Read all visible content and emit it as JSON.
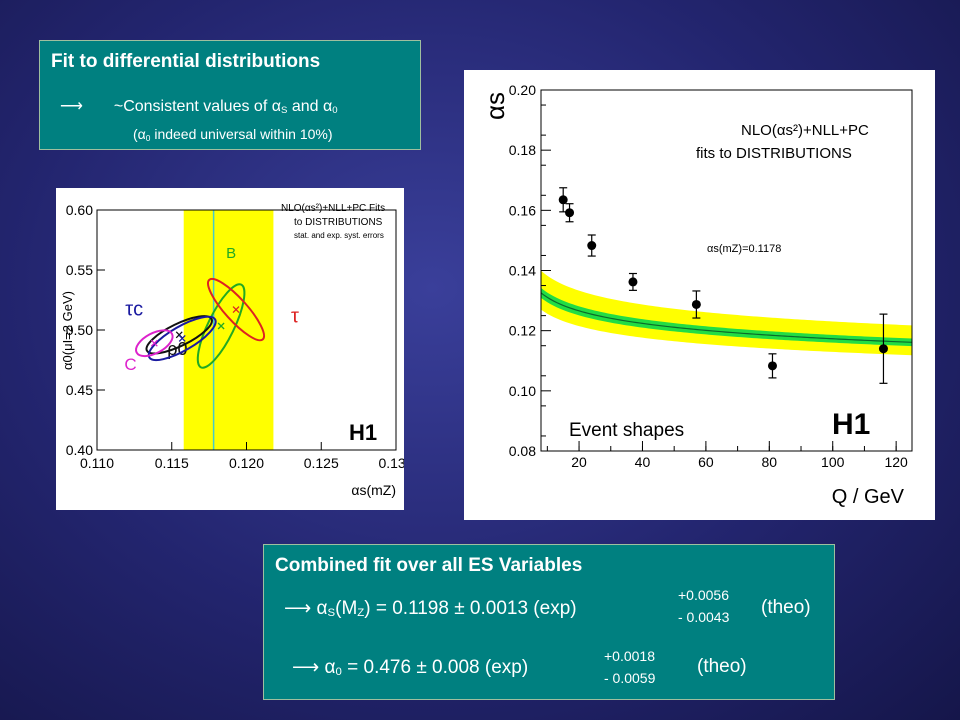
{
  "box1": {
    "title": "Fit to differential distributions",
    "arrow": "⟶",
    "line1_text": "~Consistent values of",
    "alpha": "α",
    "S": "S",
    "and": "and",
    "zero": "0",
    "line2_open": "(",
    "line2_rest": "indeed universal within 10%)"
  },
  "box2": {
    "title": "Combined fit over all ES Variables",
    "arrow": "⟶",
    "alpha": "α",
    "S": "S",
    "M": "(M",
    "Z": "Z",
    "eq1": ") = 0.1198 ± 0.0013 (exp)",
    "up1": "+0.0056",
    "dn1": "- 0.0043",
    "theo": "(theo)",
    "zero": "0",
    "eq2": "= 0.476 ± 0.008 (exp)",
    "up2": "+0.0018",
    "dn2": "- 0.0059"
  },
  "chart_data": [
    {
      "type": "scatter",
      "title": "",
      "xlabel": "αs(mZ)",
      "ylabel": "α0(μI=2 GeV)",
      "xlim": [
        0.11,
        0.13
      ],
      "ylim": [
        0.4,
        0.6
      ],
      "xticks": [
        "0.110",
        "0.115",
        "0.120",
        "0.125",
        "0.130"
      ],
      "yticks": [
        "0.40",
        "0.45",
        "0.50",
        "0.55",
        "0.60"
      ],
      "legend": [
        "NLO(αs²)+NLL+PC Fits",
        "to DISTRIBUTIONS",
        "stat. and exp. syst. errors"
      ],
      "band": [
        0.1158,
        0.1218
      ],
      "central_line": 0.1178,
      "series": [
        {
          "name": "B",
          "x": 0.1179,
          "y": 0.5,
          "color": "#22aa22"
        },
        {
          "name": "τ",
          "x": 0.1193,
          "y": 0.517,
          "color": "#dd2222"
        },
        {
          "name": "ρ0",
          "x": 0.1155,
          "y": 0.496,
          "color": "#111111"
        },
        {
          "name": "τc",
          "x": 0.1157,
          "y": 0.493,
          "color": "#1a1aa0"
        },
        {
          "name": "C",
          "x": 0.1137,
          "y": 0.489,
          "color": "#dd22cc"
        }
      ],
      "watermark": "H1"
    },
    {
      "type": "line",
      "title": "",
      "ylabel": "αs",
      "xlabel": "Q / GeV",
      "xlim": [
        8,
        125
      ],
      "ylim": [
        0.08,
        0.2
      ],
      "xticks": [
        "20",
        "40",
        "60",
        "80",
        "100",
        "120"
      ],
      "yticks": [
        "0.08",
        "0.10",
        "0.12",
        "0.14",
        "0.16",
        "0.18",
        "0.20"
      ],
      "annotations": [
        "NLO(αs²)+NLL+PC",
        "fits to DISTRIBUTIONS",
        "αs(mZ)=0.1178",
        "Event shapes",
        "H1"
      ],
      "points": [
        {
          "x": 15.0,
          "y": 0.1635,
          "err": 0.004
        },
        {
          "x": 17.0,
          "y": 0.1592,
          "err": 0.003
        },
        {
          "x": 24.0,
          "y": 0.1483,
          "err": 0.0035
        },
        {
          "x": 37.0,
          "y": 0.1362,
          "err": 0.0028
        },
        {
          "x": 57.0,
          "y": 0.1287,
          "err": 0.0045
        },
        {
          "x": 81.0,
          "y": 0.1083,
          "err": 0.004
        },
        {
          "x": 116.0,
          "y": 0.114,
          "err": 0.0115
        }
      ]
    }
  ]
}
